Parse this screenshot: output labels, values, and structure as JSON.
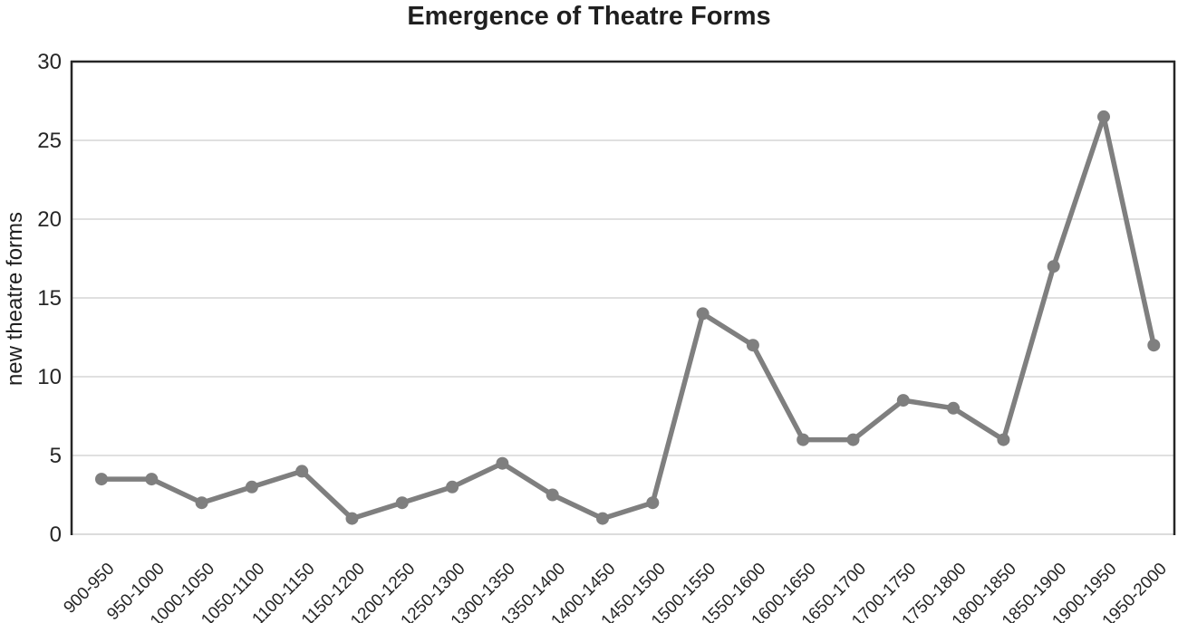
{
  "chart_data": {
    "type": "line",
    "title": "Emergence of Theatre Forms",
    "xlabel": "",
    "ylabel": "new theatre forms",
    "categories": [
      "900-950",
      "950-1000",
      "1000-1050",
      "1050-1100",
      "1100-1150",
      "1150-1200",
      "1200-1250",
      "1250-1300",
      "1300-1350",
      "1350-1400",
      "1400-1450",
      "1450-1500",
      "1500-1550",
      "1550-1600",
      "1600-1650",
      "1650-1700",
      "1700-1750",
      "1750-1800",
      "1800-1850",
      "1850-1900",
      "1900-1950",
      "1950-2000"
    ],
    "values": [
      3.5,
      3.5,
      2,
      3,
      4,
      1,
      2,
      3,
      4.5,
      2.5,
      1,
      2,
      14,
      12,
      6,
      6,
      8.5,
      8,
      6,
      17,
      26.5,
      12
    ],
    "ylim": [
      0,
      30
    ],
    "yticks": [
      0,
      5,
      10,
      15,
      20,
      25,
      30
    ],
    "grid": "horizontal",
    "legend": "none",
    "colors": {
      "line": "#7f7f7f",
      "marker": "#7f7f7f",
      "gridline": "#e0e0e0",
      "zero_line": "#dcdcdc",
      "axis_border": "#262626",
      "text": "#262626"
    }
  }
}
